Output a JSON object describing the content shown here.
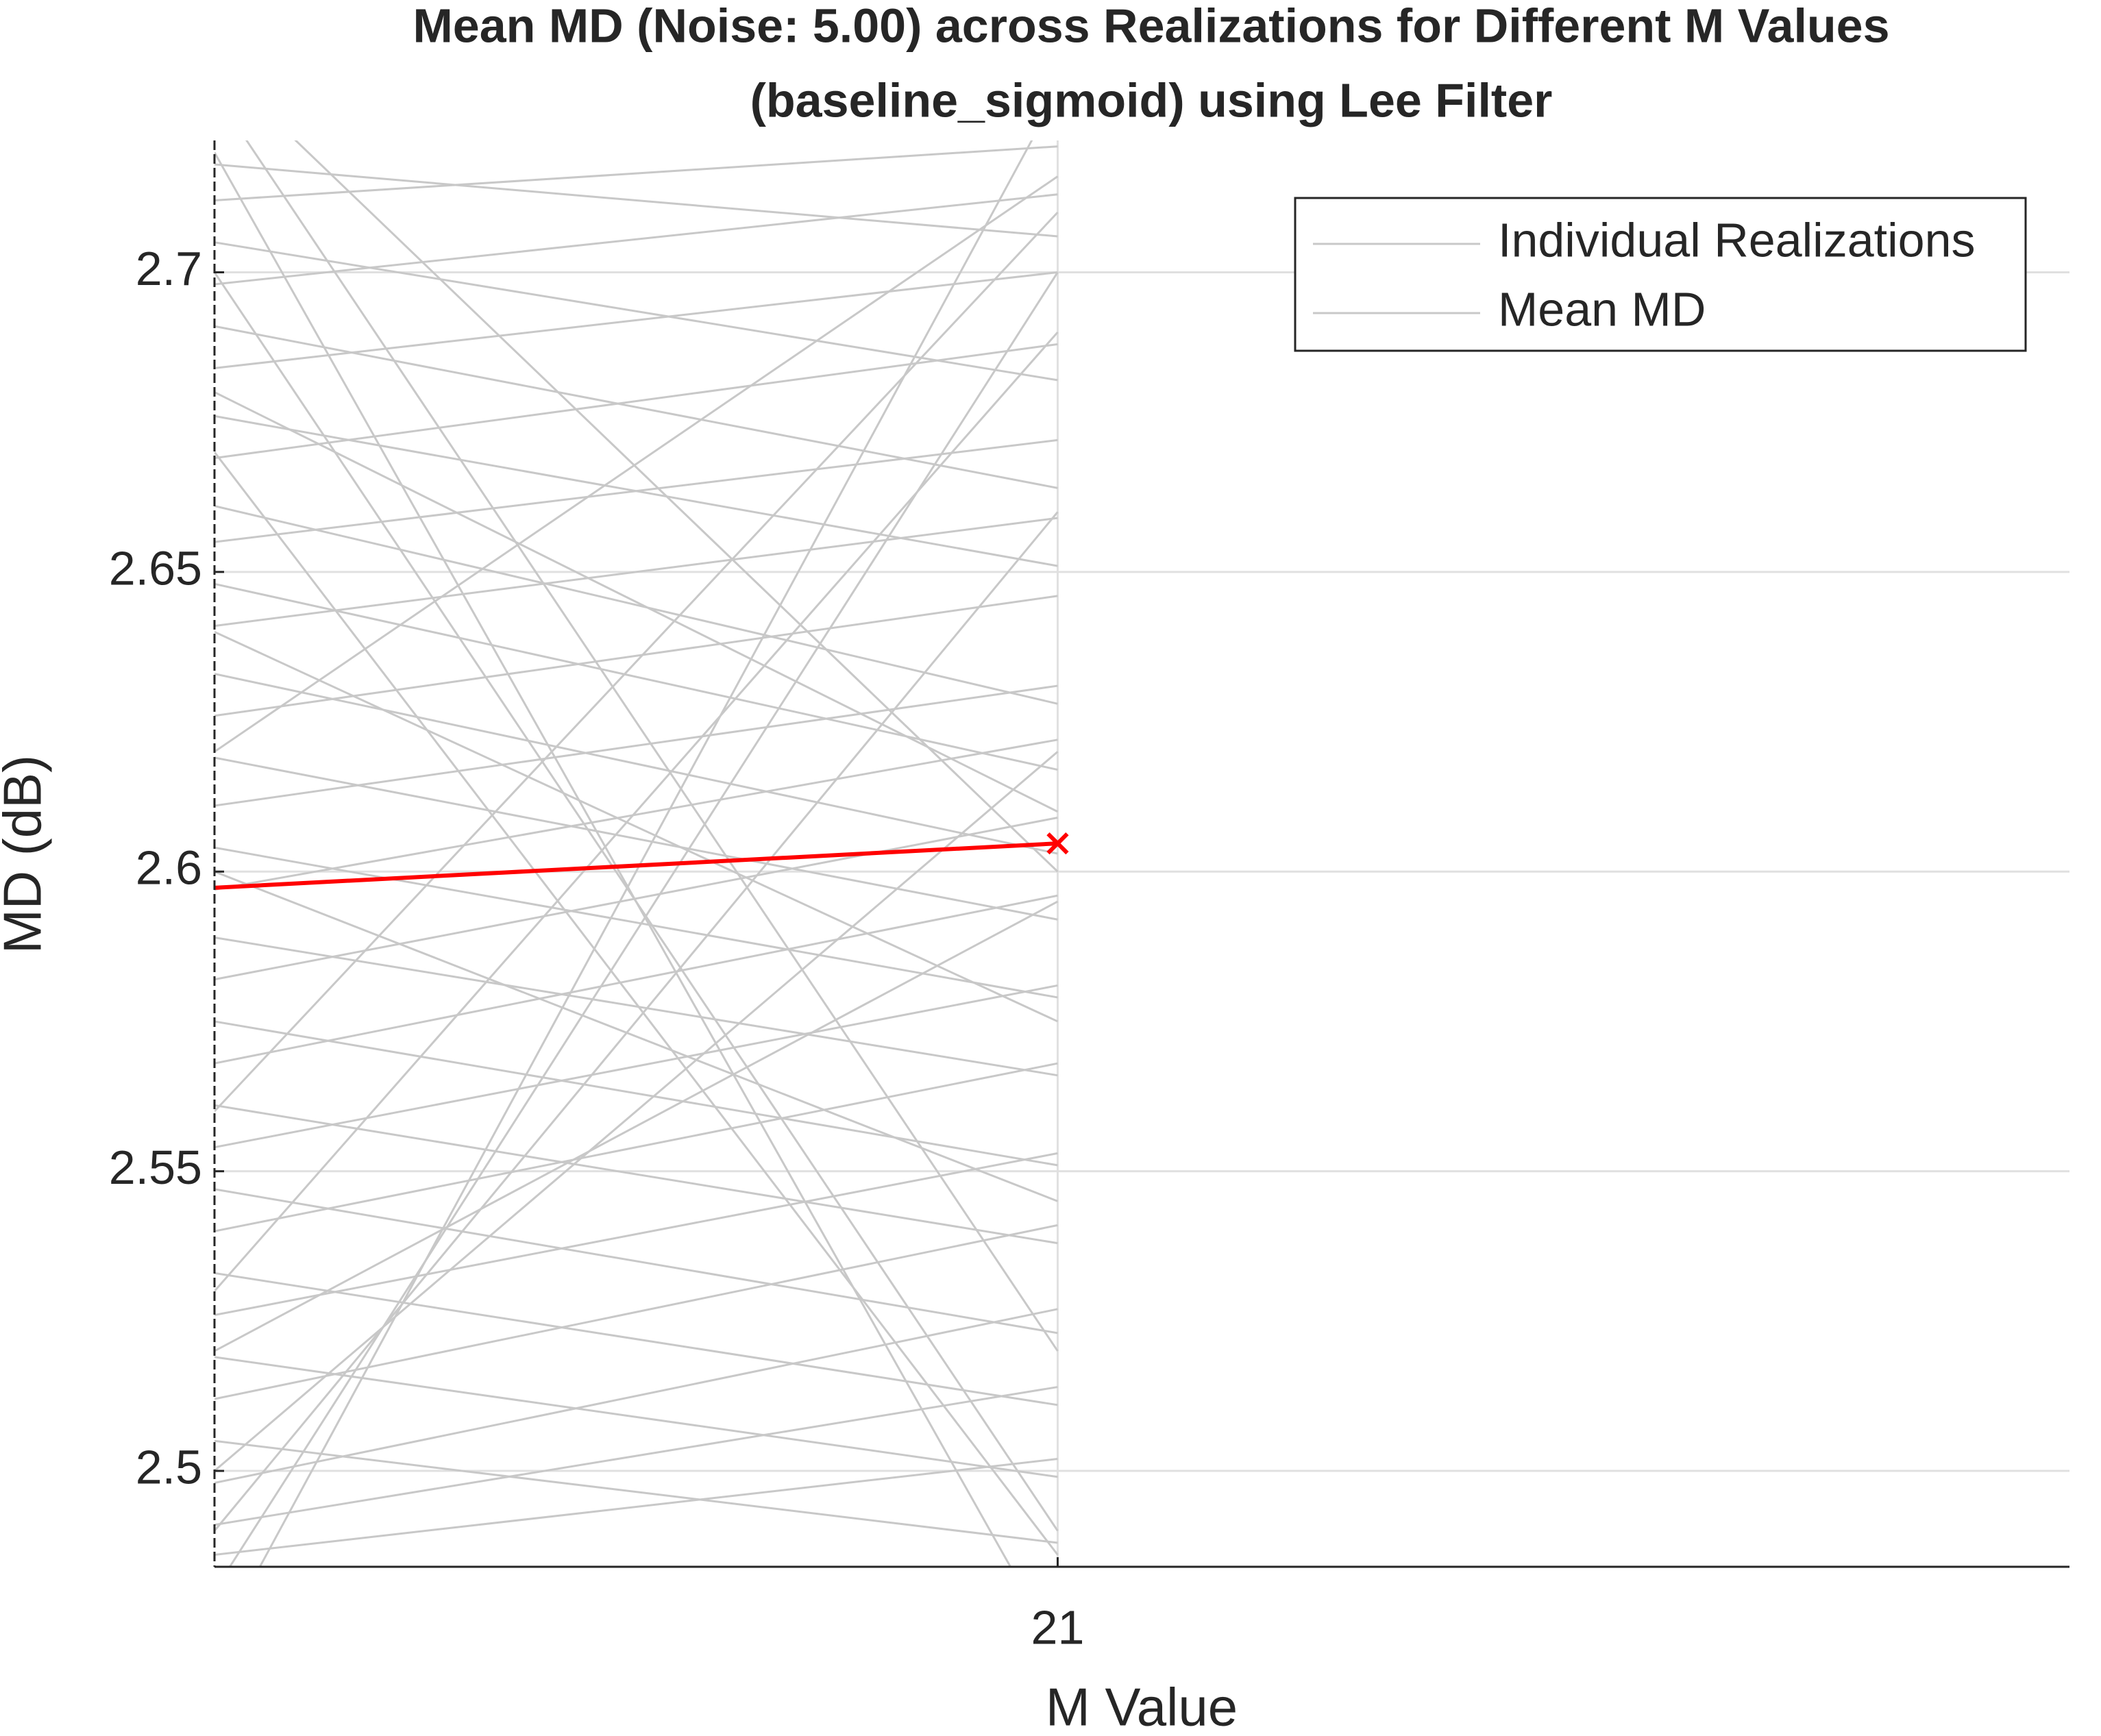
{
  "chart_data": {
    "type": "line",
    "title": [
      "Mean MD (Noise: 5.00) across Realizations for Different M Values",
      "(baseline_sigmoid) using Lee Filter"
    ],
    "x_label": "M Value",
    "y_label": "MD (dB)",
    "x": [
      20,
      21
    ],
    "xlim": [
      20,
      22.2
    ],
    "xticks": [
      21
    ],
    "ylim": [
      2.484,
      2.722
    ],
    "yticks": [
      2.5,
      2.55,
      2.6,
      2.65,
      2.7
    ],
    "grid": true,
    "legend": "upper right",
    "series": [
      {
        "name": "Individual Realizations",
        "color": "#c8c8c8",
        "legend_color": "#c8c8c8",
        "lines": [
          [
            2.718,
            2.706
          ],
          [
            2.712,
            2.721
          ],
          [
            2.705,
            2.682
          ],
          [
            2.698,
            2.713
          ],
          [
            2.691,
            2.664
          ],
          [
            2.684,
            2.7
          ],
          [
            2.676,
            2.651
          ],
          [
            2.669,
            2.688
          ],
          [
            2.661,
            2.628
          ],
          [
            2.655,
            2.672
          ],
          [
            2.648,
            2.617
          ],
          [
            2.641,
            2.659
          ],
          [
            2.633,
            2.603
          ],
          [
            2.626,
            2.646
          ],
          [
            2.619,
            2.592
          ],
          [
            2.611,
            2.631
          ],
          [
            2.604,
            2.579
          ],
          [
            2.597,
            2.622
          ],
          [
            2.589,
            2.566
          ],
          [
            2.582,
            2.609
          ],
          [
            2.575,
            2.551
          ],
          [
            2.568,
            2.596
          ],
          [
            2.561,
            2.538
          ],
          [
            2.554,
            2.581
          ],
          [
            2.547,
            2.523
          ],
          [
            2.54,
            2.568
          ],
          [
            2.533,
            2.511
          ],
          [
            2.526,
            2.553
          ],
          [
            2.519,
            2.499
          ],
          [
            2.512,
            2.541
          ],
          [
            2.505,
            2.488
          ],
          [
            2.498,
            2.527
          ],
          [
            2.491,
            2.514
          ],
          [
            2.486,
            2.502
          ],
          [
            2.735,
            2.6
          ],
          [
            2.73,
            2.52
          ],
          [
            2.72,
            2.47
          ],
          [
            2.7,
            2.49
          ],
          [
            2.67,
            2.486
          ],
          [
            2.5,
            2.62
          ],
          [
            2.49,
            2.66
          ],
          [
            2.48,
            2.7
          ],
          [
            2.47,
            2.73
          ],
          [
            2.53,
            2.69
          ],
          [
            2.56,
            2.71
          ],
          [
            2.62,
            2.716
          ],
          [
            2.6,
            2.545
          ],
          [
            2.64,
            2.575
          ],
          [
            2.68,
            2.61
          ],
          [
            2.52,
            2.595
          ]
        ]
      },
      {
        "name": "Mean MD",
        "color": "#ff0000",
        "legend_color": "#c8c8c8",
        "values": [
          2.5973,
          2.6047
        ]
      }
    ]
  }
}
